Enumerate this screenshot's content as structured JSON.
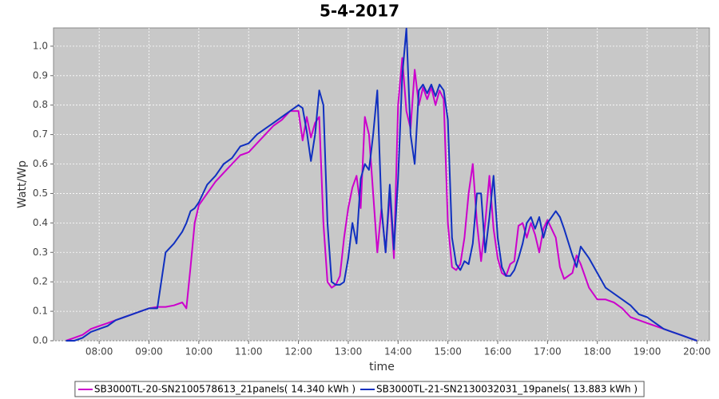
{
  "chart_data": {
    "type": "line",
    "title": "5-4-2017",
    "x_label": "time",
    "y_label": "Watt/Wp",
    "x": [
      "07:20",
      "07:30",
      "07:40",
      "07:50",
      "08:00",
      "08:10",
      "08:20",
      "08:30",
      "08:40",
      "08:50",
      "09:00",
      "09:10",
      "09:20",
      "09:30",
      "09:40",
      "09:45",
      "09:50",
      "09:55",
      "10:00",
      "10:10",
      "10:20",
      "10:30",
      "10:40",
      "10:50",
      "11:00",
      "11:10",
      "11:20",
      "11:30",
      "11:40",
      "11:50",
      "12:00",
      "12:05",
      "12:10",
      "12:15",
      "12:20",
      "12:25",
      "12:30",
      "12:35",
      "12:40",
      "12:45",
      "12:50",
      "12:55",
      "13:00",
      "13:05",
      "13:10",
      "13:15",
      "13:20",
      "13:25",
      "13:30",
      "13:35",
      "13:40",
      "13:45",
      "13:50",
      "13:55",
      "14:00",
      "14:05",
      "14:10",
      "14:15",
      "14:20",
      "14:25",
      "14:30",
      "14:35",
      "14:40",
      "14:45",
      "14:50",
      "14:55",
      "15:00",
      "15:05",
      "15:10",
      "15:15",
      "15:20",
      "15:25",
      "15:30",
      "15:35",
      "15:40",
      "15:45",
      "15:50",
      "15:55",
      "16:00",
      "16:05",
      "16:10",
      "16:15",
      "16:20",
      "16:25",
      "16:30",
      "16:35",
      "16:40",
      "16:45",
      "16:50",
      "16:55",
      "17:00",
      "17:10",
      "17:15",
      "17:20",
      "17:30",
      "17:35",
      "17:40",
      "17:50",
      "18:00",
      "18:10",
      "18:20",
      "18:30",
      "18:40",
      "18:50",
      "19:00",
      "19:10",
      "19:20",
      "19:30",
      "19:40",
      "19:50",
      "20:00"
    ],
    "series": [
      {
        "name": "SB3000TL-20-SN2100578613_21panels( 14.340 kWh )",
        "color": "#cc00cc",
        "values": [
          0.0,
          0.01,
          0.02,
          0.04,
          0.05,
          0.06,
          0.07,
          0.08,
          0.09,
          0.1,
          0.11,
          0.115,
          0.115,
          0.12,
          0.13,
          0.11,
          0.25,
          0.4,
          0.46,
          0.5,
          0.54,
          0.57,
          0.6,
          0.63,
          0.64,
          0.67,
          0.7,
          0.73,
          0.75,
          0.78,
          0.78,
          0.68,
          0.76,
          0.69,
          0.74,
          0.76,
          0.4,
          0.2,
          0.18,
          0.19,
          0.22,
          0.35,
          0.45,
          0.52,
          0.56,
          0.45,
          0.76,
          0.7,
          0.5,
          0.3,
          0.45,
          0.3,
          0.5,
          0.28,
          0.8,
          0.96,
          0.78,
          0.72,
          0.92,
          0.8,
          0.86,
          0.82,
          0.86,
          0.8,
          0.85,
          0.82,
          0.4,
          0.25,
          0.24,
          0.26,
          0.35,
          0.5,
          0.6,
          0.4,
          0.27,
          0.4,
          0.56,
          0.38,
          0.28,
          0.23,
          0.22,
          0.26,
          0.27,
          0.39,
          0.4,
          0.35,
          0.4,
          0.36,
          0.3,
          0.38,
          0.41,
          0.35,
          0.25,
          0.21,
          0.23,
          0.29,
          0.26,
          0.18,
          0.14,
          0.14,
          0.13,
          0.11,
          0.08,
          0.07,
          0.06,
          0.05,
          0.04,
          0.03,
          0.02,
          0.01,
          0.0
        ]
      },
      {
        "name": "SB3000TL-21-SN2130032031_19panels( 13.883 kWh )",
        "color": "#1030c0",
        "values": [
          0.0,
          0.0,
          0.01,
          0.03,
          0.04,
          0.05,
          0.07,
          0.08,
          0.09,
          0.1,
          0.11,
          0.11,
          0.3,
          0.33,
          0.37,
          0.4,
          0.44,
          0.45,
          0.47,
          0.53,
          0.56,
          0.6,
          0.62,
          0.66,
          0.67,
          0.7,
          0.72,
          0.74,
          0.76,
          0.78,
          0.8,
          0.79,
          0.71,
          0.61,
          0.7,
          0.85,
          0.8,
          0.4,
          0.2,
          0.19,
          0.19,
          0.2,
          0.28,
          0.4,
          0.33,
          0.55,
          0.6,
          0.58,
          0.7,
          0.85,
          0.45,
          0.3,
          0.53,
          0.31,
          0.55,
          0.9,
          1.06,
          0.7,
          0.6,
          0.85,
          0.87,
          0.84,
          0.87,
          0.83,
          0.87,
          0.85,
          0.75,
          0.35,
          0.26,
          0.24,
          0.27,
          0.26,
          0.33,
          0.5,
          0.5,
          0.3,
          0.42,
          0.56,
          0.35,
          0.25,
          0.22,
          0.22,
          0.24,
          0.28,
          0.33,
          0.4,
          0.42,
          0.38,
          0.42,
          0.35,
          0.4,
          0.44,
          0.42,
          0.38,
          0.29,
          0.25,
          0.32,
          0.28,
          0.23,
          0.18,
          0.16,
          0.14,
          0.12,
          0.09,
          0.08,
          0.06,
          0.04,
          0.03,
          0.02,
          0.01,
          0.0
        ]
      }
    ],
    "xlim": [
      "07:05",
      "20:15"
    ],
    "xticks": [
      "08:00",
      "09:00",
      "10:00",
      "11:00",
      "12:00",
      "13:00",
      "14:00",
      "15:00",
      "16:00",
      "17:00",
      "18:00",
      "19:00",
      "20:00"
    ],
    "ylim": [
      0,
      1.062
    ],
    "yticks": [
      {
        "value": 0,
        "label": "0.0"
      },
      0.1,
      0.2,
      0.3,
      0.4,
      0.5,
      0.6,
      0.7,
      0.8,
      0.9,
      {
        "value": 1,
        "label": "1.0"
      }
    ],
    "grid": true,
    "legend": "bottom"
  }
}
